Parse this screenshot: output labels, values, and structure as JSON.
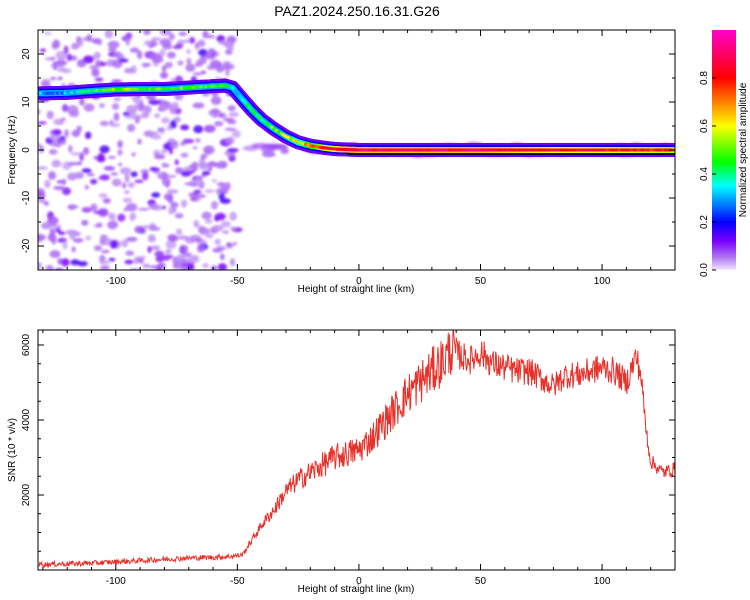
{
  "title": "PAZ1.2024.250.16.31.G26",
  "colors": {
    "snr_line": "#e8312a",
    "track_line": "#000000",
    "axes": "#000000"
  },
  "chart_data": [
    {
      "type": "heatmap",
      "name": "spectrogram",
      "xlabel": "Height of straight line (km)",
      "ylabel": "Frequency (Hz)",
      "xlim": [
        -132,
        130
      ],
      "ylim": [
        -25,
        25
      ],
      "x_ticks": [
        -100,
        -50,
        0,
        50,
        100
      ],
      "y_ticks": [
        -20,
        -10,
        0,
        10,
        20
      ],
      "colormap": "rainbow (purple → blue → cyan → green → yellow → red → magenta)",
      "track": {
        "x": [
          -132,
          -120,
          -110,
          -100,
          -90,
          -80,
          -70,
          -60,
          -55,
          -52,
          -48,
          -44,
          -40,
          -35,
          -30,
          -25,
          -20,
          -15,
          -10,
          -5,
          0,
          20,
          50,
          80,
          130
        ],
        "y": [
          11.8,
          11.9,
          12.3,
          12.6,
          12.7,
          12.7,
          13.0,
          13.3,
          13.4,
          13.0,
          10.6,
          8.3,
          6.3,
          4.4,
          2.8,
          1.6,
          0.9,
          0.5,
          0.2,
          0.1,
          0.0,
          0.0,
          0.0,
          0.0,
          0.0
        ],
        "amplitude": [
          0.3,
          0.3,
          0.45,
          0.5,
          0.5,
          0.5,
          0.5,
          0.45,
          0.4,
          0.35,
          0.35,
          0.4,
          0.45,
          0.5,
          0.55,
          0.6,
          0.7,
          0.8,
          0.85,
          0.9,
          0.9,
          0.9,
          0.9,
          0.85,
          0.8
        ]
      },
      "noise_region_x": [
        -132,
        -50
      ],
      "colorbar": {
        "label": "Normalized spectral amplitude",
        "range": [
          0,
          1
        ],
        "ticks": [
          0.0,
          0.2,
          0.4,
          0.6,
          0.8
        ]
      }
    },
    {
      "type": "line",
      "name": "snr",
      "xlabel": "Height of straight line (km)",
      "ylabel": "SNR (10 * v/v)",
      "xlim": [
        -132,
        130
      ],
      "ylim": [
        0,
        6400
      ],
      "x_ticks": [
        -100,
        -50,
        0,
        50,
        100
      ],
      "y_ticks": [
        2000,
        4000,
        6000
      ],
      "series": [
        {
          "x": [
            -132,
            -110,
            -90,
            -70,
            -55,
            -48,
            -45,
            -40,
            -35,
            -30,
            -25,
            -20,
            -15,
            -10,
            -5,
            0,
            5,
            10,
            15,
            20,
            25,
            30,
            35,
            38,
            42,
            46,
            50,
            55,
            60,
            65,
            70,
            75,
            80,
            85,
            90,
            95,
            100,
            105,
            110,
            114,
            116,
            118,
            120,
            125,
            130
          ],
          "values": [
            150,
            180,
            250,
            320,
            350,
            400,
            700,
            1200,
            1600,
            2100,
            2400,
            2600,
            2800,
            3000,
            3100,
            3200,
            3500,
            3900,
            4300,
            4700,
            5000,
            5300,
            5600,
            5900,
            5700,
            5600,
            5800,
            5500,
            5400,
            5300,
            5300,
            5100,
            4900,
            5200,
            5200,
            5300,
            5400,
            5300,
            5000,
            5700,
            5200,
            3800,
            2900,
            2600,
            2700
          ]
        }
      ]
    }
  ]
}
